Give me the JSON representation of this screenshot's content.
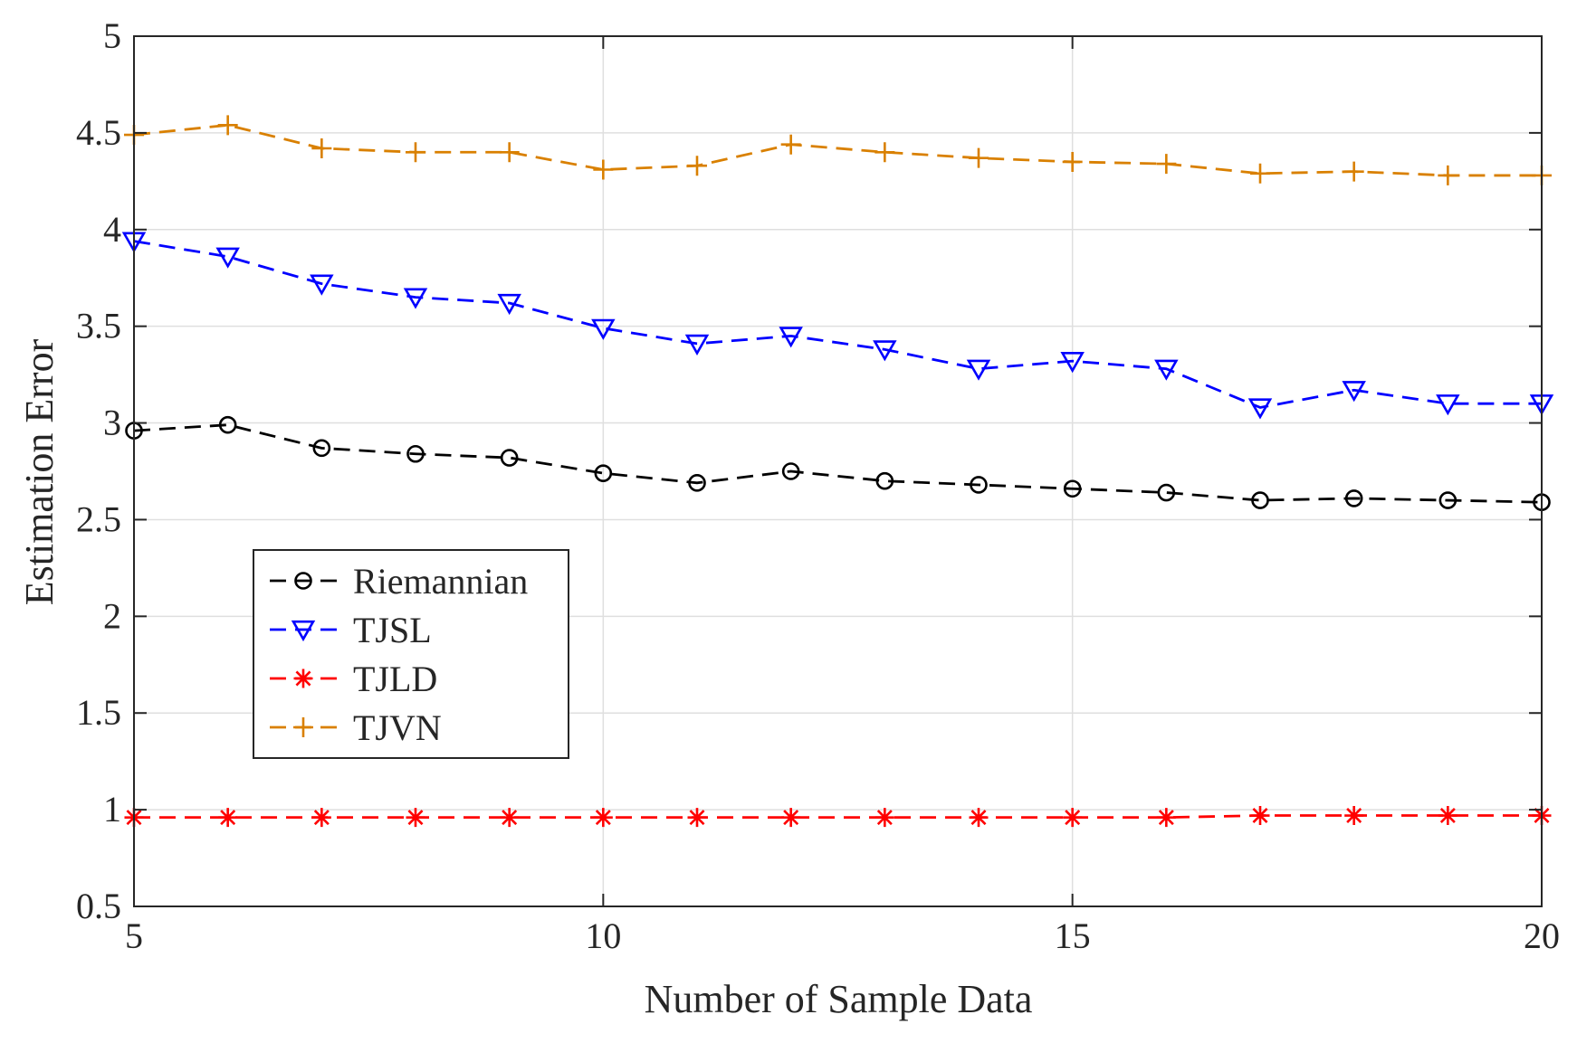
{
  "chart_data": {
    "type": "line",
    "title": "",
    "xlabel": "Number of Sample Data",
    "ylabel": "Estimation Error",
    "xlim": [
      5,
      20
    ],
    "ylim": [
      0.5,
      5
    ],
    "xticks": [
      5,
      10,
      15,
      20
    ],
    "yticks": [
      0.5,
      1,
      1.5,
      2,
      2.5,
      3,
      3.5,
      4,
      4.5,
      5
    ],
    "ytick_labels": [
      "0.5",
      "1",
      "1.5",
      "2",
      "2.5",
      "3",
      "3.5",
      "4",
      "4.5",
      "5"
    ],
    "grid": true,
    "legend_position": "lower-left",
    "x": [
      5,
      6,
      7,
      8,
      9,
      10,
      11,
      12,
      13,
      14,
      15,
      16,
      17,
      18,
      19,
      20
    ],
    "series": [
      {
        "name": "Riemannian",
        "color": "#000000",
        "marker": "circle",
        "values": [
          2.96,
          2.99,
          2.87,
          2.84,
          2.82,
          2.74,
          2.69,
          2.75,
          2.7,
          2.68,
          2.66,
          2.64,
          2.6,
          2.61,
          2.6,
          2.59
        ]
      },
      {
        "name": "TJSL",
        "color": "#0000ff",
        "marker": "triangle-down",
        "values": [
          3.94,
          3.86,
          3.72,
          3.65,
          3.62,
          3.49,
          3.41,
          3.45,
          3.38,
          3.28,
          3.32,
          3.28,
          3.08,
          3.17,
          3.1,
          3.1
        ]
      },
      {
        "name": "TJLD",
        "color": "#ff0000",
        "marker": "asterisk",
        "values": [
          0.96,
          0.96,
          0.96,
          0.96,
          0.96,
          0.96,
          0.96,
          0.96,
          0.96,
          0.96,
          0.96,
          0.96,
          0.97,
          0.97,
          0.97,
          0.97
        ]
      },
      {
        "name": "TJVN",
        "color": "#d98000",
        "marker": "plus",
        "values": [
          4.49,
          4.54,
          4.42,
          4.4,
          4.4,
          4.31,
          4.33,
          4.44,
          4.4,
          4.37,
          4.35,
          4.34,
          4.29,
          4.3,
          4.28,
          4.28
        ]
      }
    ]
  }
}
